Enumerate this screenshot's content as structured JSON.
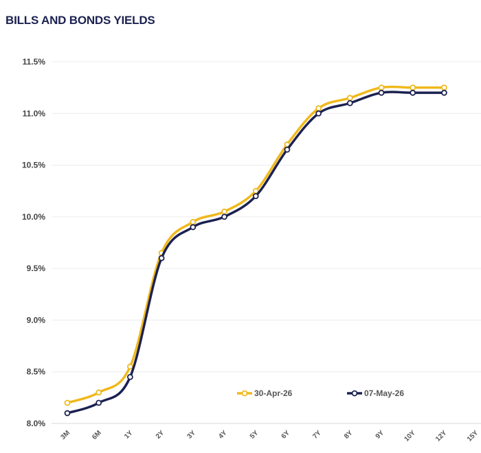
{
  "chart_data": {
    "type": "line",
    "title": "BILLS AND BONDS YIELDS",
    "categories": [
      "3M",
      "6M",
      "1Y",
      "2Y",
      "3Y",
      "4Y",
      "5Y",
      "6Y",
      "7Y",
      "8Y",
      "9Y",
      "10Y",
      "12Y",
      "15Y"
    ],
    "series": [
      {
        "name": "30-Apr-26",
        "color": "#f0b81c",
        "values": [
          8.2,
          8.3,
          8.55,
          9.65,
          9.95,
          10.05,
          10.25,
          10.7,
          11.05,
          11.15,
          11.25,
          11.25,
          11.25,
          null
        ]
      },
      {
        "name": "07-May-26",
        "color": "#1b2150",
        "values": [
          8.1,
          8.2,
          8.45,
          9.6,
          9.9,
          10.0,
          10.2,
          10.65,
          11.0,
          11.1,
          11.2,
          11.2,
          11.2,
          null
        ]
      }
    ],
    "yticks": [
      "8.0%",
      "8.5%",
      "9.0%",
      "9.5%",
      "10.0%",
      "10.5%",
      "11.0%",
      "11.5%"
    ],
    "ylim": [
      8.0,
      11.5
    ],
    "grid": true,
    "legend_position": "bottom-right"
  }
}
